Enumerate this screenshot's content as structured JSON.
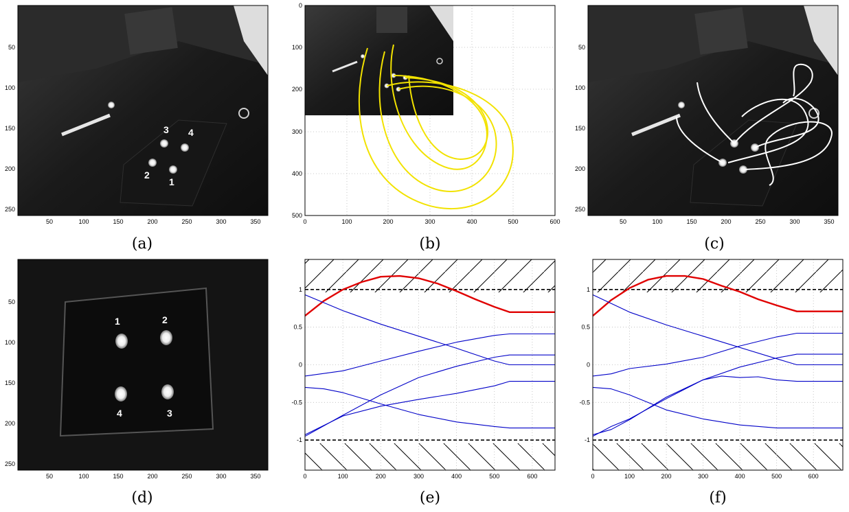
{
  "panels": [
    {
      "id": "a",
      "caption": "(a)"
    },
    {
      "id": "b",
      "caption": "(b)"
    },
    {
      "id": "c",
      "caption": "(c)"
    },
    {
      "id": "d",
      "caption": "(d)"
    },
    {
      "id": "e",
      "caption": "(e)"
    },
    {
      "id": "f",
      "caption": "(f)"
    }
  ],
  "image_axes": {
    "x_ticks": [
      "50",
      "100",
      "150",
      "200",
      "250",
      "300",
      "350"
    ],
    "y_ticks": [
      "50",
      "100",
      "150",
      "200",
      "250"
    ]
  },
  "panel_b_axes": {
    "x_ticks": [
      "0",
      "100",
      "200",
      "300",
      "400",
      "500",
      "600"
    ],
    "y_ticks": [
      "0",
      "100",
      "200",
      "300",
      "400",
      "500"
    ]
  },
  "marker_labels_a": [
    "1",
    "2",
    "3",
    "4"
  ],
  "marker_labels_d": [
    "1",
    "2",
    "3",
    "4"
  ],
  "chart_data": [
    {
      "panel": "e",
      "type": "line",
      "xlim": [
        0,
        660
      ],
      "ylim": [
        -1.4,
        1.4
      ],
      "x_ticks": [
        "0",
        "100",
        "200",
        "300",
        "400",
        "500",
        "600"
      ],
      "y_ticks": [
        "1",
        "0.5",
        "0",
        "-0.5",
        "-1"
      ],
      "grid": true,
      "bounds": [
        1,
        -1
      ],
      "series": [
        {
          "color": "#e00000",
          "x": [
            0,
            50,
            100,
            150,
            200,
            250,
            300,
            350,
            400,
            450,
            500,
            540,
            660
          ],
          "y": [
            0.65,
            0.85,
            1.0,
            1.1,
            1.17,
            1.18,
            1.15,
            1.08,
            0.98,
            0.87,
            0.77,
            0.7,
            0.7
          ]
        },
        {
          "color": "#0000c8",
          "x": [
            0,
            100,
            200,
            300,
            400,
            500,
            540,
            660
          ],
          "y": [
            0.93,
            0.72,
            0.54,
            0.38,
            0.22,
            0.05,
            0.0,
            0.0
          ]
        },
        {
          "color": "#0000c8",
          "x": [
            0,
            100,
            200,
            300,
            400,
            500,
            540,
            660
          ],
          "y": [
            -0.15,
            -0.08,
            0.05,
            0.18,
            0.3,
            0.39,
            0.41,
            0.41
          ]
        },
        {
          "color": "#0000c8",
          "x": [
            0,
            100,
            200,
            300,
            400,
            500,
            540,
            660
          ],
          "y": [
            -0.95,
            -0.67,
            -0.4,
            -0.17,
            -0.02,
            0.1,
            0.13,
            0.13
          ]
        },
        {
          "color": "#0000c8",
          "x": [
            0,
            100,
            200,
            300,
            400,
            500,
            540,
            660
          ],
          "y": [
            -0.93,
            -0.68,
            -0.55,
            -0.46,
            -0.38,
            -0.28,
            -0.22,
            -0.22
          ]
        },
        {
          "color": "#0000c8",
          "x": [
            0,
            50,
            100,
            200,
            300,
            400,
            500,
            540,
            660
          ],
          "y": [
            -0.3,
            -0.32,
            -0.37,
            -0.52,
            -0.66,
            -0.76,
            -0.82,
            -0.84,
            -0.84
          ]
        }
      ]
    },
    {
      "panel": "f",
      "type": "line",
      "xlim": [
        0,
        680
      ],
      "ylim": [
        -1.4,
        1.4
      ],
      "x_ticks": [
        "0",
        "100",
        "200",
        "300",
        "400",
        "500",
        "600"
      ],
      "y_ticks": [
        "1",
        "0.5",
        "0",
        "-0.5",
        "-1"
      ],
      "grid": true,
      "bounds": [
        1,
        -1
      ],
      "series": [
        {
          "color": "#e00000",
          "x": [
            0,
            50,
            100,
            150,
            200,
            250,
            300,
            350,
            400,
            450,
            500,
            555,
            680
          ],
          "y": [
            0.65,
            0.86,
            1.02,
            1.13,
            1.18,
            1.18,
            1.14,
            1.05,
            0.97,
            0.87,
            0.79,
            0.71,
            0.71
          ]
        },
        {
          "color": "#0000c8",
          "x": [
            0,
            100,
            200,
            300,
            400,
            500,
            555,
            680
          ],
          "y": [
            0.93,
            0.7,
            0.53,
            0.38,
            0.23,
            0.08,
            0.0,
            0.0
          ]
        },
        {
          "color": "#0000c8",
          "x": [
            0,
            50,
            100,
            200,
            300,
            400,
            500,
            555,
            680
          ],
          "y": [
            -0.15,
            -0.12,
            -0.05,
            0.01,
            0.1,
            0.25,
            0.37,
            0.42,
            0.42
          ]
        },
        {
          "color": "#0000c8",
          "x": [
            0,
            50,
            100,
            200,
            300,
            400,
            500,
            555,
            680
          ],
          "y": [
            -0.95,
            -0.82,
            -0.72,
            -0.45,
            -0.2,
            -0.03,
            0.09,
            0.14,
            0.14
          ]
        },
        {
          "color": "#0000c8",
          "x": [
            0,
            50,
            100,
            200,
            300,
            350,
            400,
            450,
            500,
            555,
            680
          ],
          "y": [
            -0.93,
            -0.86,
            -0.73,
            -0.43,
            -0.2,
            -0.15,
            -0.17,
            -0.16,
            -0.2,
            -0.22,
            -0.22
          ]
        },
        {
          "color": "#0000c8",
          "x": [
            0,
            50,
            100,
            200,
            300,
            400,
            500,
            555,
            680
          ],
          "y": [
            -0.3,
            -0.32,
            -0.4,
            -0.6,
            -0.72,
            -0.8,
            -0.84,
            -0.84,
            -0.84
          ]
        }
      ]
    }
  ]
}
